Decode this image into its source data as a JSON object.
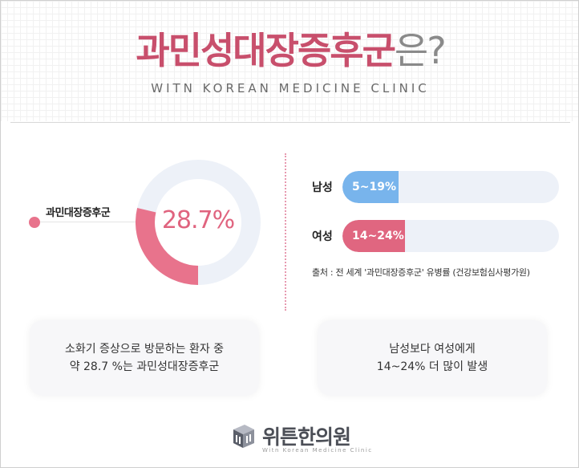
{
  "header": {
    "title_main": "과민성대장증후군",
    "title_suffix": "은?",
    "subtitle": "WITN KOREAN MEDICINE CLINIC"
  },
  "donut": {
    "label": "과민대장증후군",
    "value_text": "28.7%",
    "fraction": 0.287,
    "color_fill": "#e8738c",
    "color_track": "#edf1f8"
  },
  "bars": [
    {
      "label": "남성",
      "value_text": "5~19%",
      "fraction": 0.26,
      "color": "#78b4ec"
    },
    {
      "label": "여성",
      "value_text": "14~24%",
      "fraction": 0.29,
      "color": "#e06680"
    }
  ],
  "source": "출처 : 전 세계 '과민대장증후군' 유병률 (건강보험심사평가원)",
  "box_left": {
    "line1": "소화기 증상으로 방문하는 환자 중",
    "line2": "약 28.7 %는 과민성대장증후군"
  },
  "box_right": {
    "line1": "남성보다 여성에게",
    "line2": "14~24% 더 많이 발생"
  },
  "logo": {
    "name": "위튼한의원",
    "sub": "Witn Korean Medicine Clinic",
    "icon": "witn-logo-icon"
  }
}
